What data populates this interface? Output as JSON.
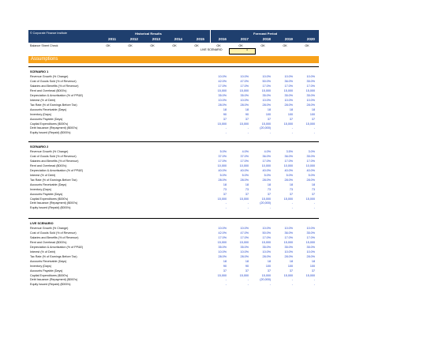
{
  "header": {
    "company": "© Corporate Finance Institute",
    "historical_label": "Historical Results",
    "forecast_label": "Forecast Period",
    "years": [
      "2011",
      "2012",
      "2013",
      "2014",
      "2015",
      "2016",
      "2017",
      "2018",
      "2019",
      "2020"
    ]
  },
  "balance_check": {
    "label": "Balance Sheet Check",
    "values": [
      "OK",
      "OK",
      "OK",
      "OK",
      "OK",
      "OK",
      "OK",
      "OK",
      "OK",
      "OK"
    ]
  },
  "live_scenario": {
    "label": "LIVE SCENARIO",
    "value": "1"
  },
  "assumptions_title": "Assumptions",
  "row_labels": [
    "Revenue Growth (% Change)",
    "Cost of Goods Sold (% of Revenue)",
    "Salaries and Benefits (% of Revenue)",
    "Rent and Overhead ($000's)",
    "Depreciation & Amortization (% of PP&E)",
    "Interest (% of Debt)",
    "Tax Rate (% of Earnings Before Tax)",
    "Accounts Receivable (Days)",
    "Inventory (Days)",
    "Accounts Payable (Days)",
    "Capital Expenditures ($000's)",
    "Debt Issuance (Repayment) ($000's)",
    "Equity Issued (Repaid) ($000's)"
  ],
  "scenarios": [
    {
      "title": "SCENARIO 1",
      "rows": [
        [
          "10.0%",
          "10.0%",
          "10.0%",
          "10.0%",
          "10.0%"
        ],
        [
          "42.0%",
          "47.0%",
          "50.0%",
          "36.0%",
          "35.0%"
        ],
        [
          "17.0%",
          "17.0%",
          "17.0%",
          "17.0%",
          "17.0%"
        ],
        [
          "15,000",
          "15,000",
          "15,000",
          "15,000",
          "15,000"
        ],
        [
          "35.0%",
          "35.0%",
          "35.0%",
          "35.0%",
          "35.0%"
        ],
        [
          "10.0%",
          "10.0%",
          "10.0%",
          "10.0%",
          "10.0%"
        ],
        [
          "28.0%",
          "28.0%",
          "28.0%",
          "28.0%",
          "28.0%"
        ],
        [
          "18",
          "18",
          "18",
          "18",
          "18"
        ],
        [
          "90",
          "90",
          "100",
          "100",
          "100"
        ],
        [
          "37",
          "37",
          "37",
          "37",
          "37"
        ],
        [
          "15,000",
          "15,000",
          "15,000",
          "15,000",
          "15,000"
        ],
        [
          "-",
          "-",
          "(20,000)",
          "-",
          "-"
        ],
        [
          "-",
          "-",
          "-",
          "-",
          "-"
        ]
      ]
    },
    {
      "title": "SCENARIO 2",
      "rows": [
        [
          "5.0%",
          "4.0%",
          "4.0%",
          "3.5%",
          "3.0%"
        ],
        [
          "37.0%",
          "37.0%",
          "36.0%",
          "36.0%",
          "35.0%"
        ],
        [
          "17.0%",
          "17.0%",
          "17.0%",
          "17.0%",
          "17.0%"
        ],
        [
          "10,000",
          "10,000",
          "10,000",
          "10,000",
          "10,000"
        ],
        [
          "40.0%",
          "40.0%",
          "40.0%",
          "40.0%",
          "40.0%"
        ],
        [
          "5.0%",
          "5.0%",
          "5.0%",
          "5.0%",
          "5.0%"
        ],
        [
          "28.0%",
          "28.0%",
          "28.0%",
          "28.0%",
          "28.0%"
        ],
        [
          "18",
          "18",
          "18",
          "18",
          "18"
        ],
        [
          "73",
          "73",
          "73",
          "73",
          "73"
        ],
        [
          "37",
          "37",
          "37",
          "37",
          "37"
        ],
        [
          "15,000",
          "15,000",
          "15,000",
          "15,000",
          "15,000"
        ],
        [
          "-",
          "-",
          "(20,000)",
          "-",
          "-"
        ],
        [
          "-",
          "-",
          "-",
          "-",
          "-"
        ]
      ]
    },
    {
      "title": "LIVE SCENARIO",
      "rows": [
        [
          "10.0%",
          "10.0%",
          "10.0%",
          "10.0%",
          "10.0%"
        ],
        [
          "42.0%",
          "47.0%",
          "50.0%",
          "36.0%",
          "35.0%"
        ],
        [
          "17.0%",
          "17.0%",
          "17.0%",
          "17.0%",
          "17.0%"
        ],
        [
          "15,000",
          "15,000",
          "15,000",
          "15,000",
          "15,000"
        ],
        [
          "35.0%",
          "35.0%",
          "35.0%",
          "35.0%",
          "35.0%"
        ],
        [
          "10.0%",
          "10.0%",
          "10.0%",
          "10.0%",
          "10.0%"
        ],
        [
          "28.0%",
          "28.0%",
          "28.0%",
          "28.0%",
          "28.0%"
        ],
        [
          "18",
          "18",
          "18",
          "18",
          "18"
        ],
        [
          "90",
          "90",
          "100",
          "100",
          "100"
        ],
        [
          "37",
          "37",
          "37",
          "37",
          "37"
        ],
        [
          "15,000",
          "15,000",
          "15,000",
          "15,000",
          "15,000"
        ],
        [
          "-",
          "-",
          "(20,000)",
          "-",
          "-"
        ],
        [
          "-",
          "-",
          "-",
          "-",
          "-"
        ]
      ]
    }
  ],
  "colors": {
    "header": "#1f3f6e",
    "assumptions": "#f7a21b",
    "forecast_text": "#1a3ec8"
  }
}
